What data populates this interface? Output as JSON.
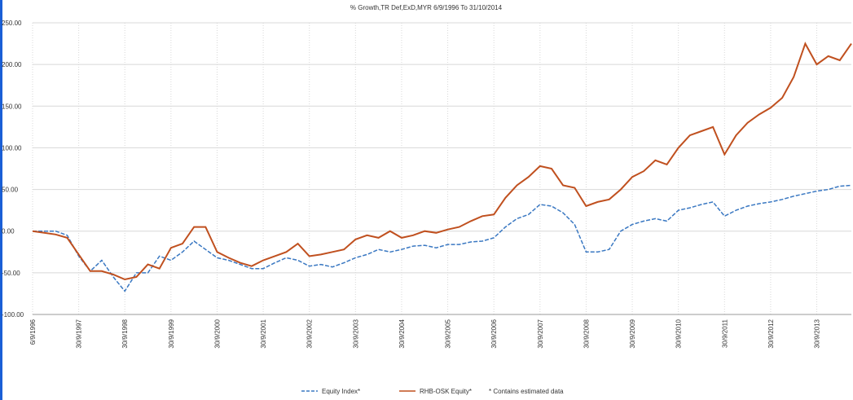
{
  "chart_data": {
    "type": "line",
    "title": "% Growth,TR Def,ExD,MYR 6/9/1996 To 31/10/2014",
    "categories": [
      "6/9/1996",
      null,
      null,
      null,
      "30/9/1997",
      null,
      null,
      null,
      "30/9/1998",
      null,
      null,
      null,
      "30/9/1999",
      null,
      null,
      null,
      "30/9/2000",
      null,
      null,
      null,
      "30/9/2001",
      null,
      null,
      null,
      "30/9/2002",
      null,
      null,
      null,
      "30/9/2003",
      null,
      null,
      null,
      "30/9/2004",
      null,
      null,
      null,
      "30/9/2005",
      null,
      null,
      null,
      "30/9/2006",
      null,
      null,
      null,
      "30/9/2007",
      null,
      null,
      null,
      "30/9/2008",
      null,
      null,
      null,
      "30/9/2009",
      null,
      null,
      null,
      "30/9/2010",
      null,
      null,
      null,
      "30/9/2011",
      null,
      null,
      null,
      "30/9/2012",
      null,
      null,
      null,
      "30/9/2013",
      null,
      null,
      null
    ],
    "series": [
      {
        "name": "Equity Index*",
        "color": "#3a78c2",
        "dash": true,
        "values": [
          0,
          0,
          0,
          -5,
          -30,
          -48,
          -35,
          -55,
          -72,
          -50,
          -50,
          -30,
          -35,
          -25,
          -12,
          -22,
          -32,
          -35,
          -40,
          -45,
          -45,
          -38,
          -32,
          -35,
          -42,
          -40,
          -43,
          -38,
          -32,
          -28,
          -22,
          -25,
          -22,
          -18,
          -17,
          -20,
          -16,
          -16,
          -13,
          -12,
          -8,
          5,
          15,
          20,
          32,
          30,
          22,
          8,
          -25,
          -25,
          -22,
          0,
          8,
          12,
          15,
          12,
          25,
          28,
          32,
          35,
          18,
          25,
          30,
          33,
          35,
          38,
          42,
          45,
          48,
          50,
          54,
          55
        ]
      },
      {
        "name": "RHB-OSK Equity*",
        "color": "#c0501f",
        "dash": false,
        "values": [
          0,
          -2,
          -4,
          -8,
          -28,
          -48,
          -48,
          -52,
          -58,
          -55,
          -40,
          -45,
          -20,
          -15,
          5,
          5,
          -25,
          -32,
          -38,
          -42,
          -35,
          -30,
          -25,
          -15,
          -30,
          -28,
          -25,
          -22,
          -10,
          -5,
          -8,
          0,
          -8,
          -5,
          0,
          -2,
          2,
          5,
          12,
          18,
          20,
          40,
          55,
          65,
          78,
          75,
          55,
          52,
          30,
          35,
          38,
          50,
          65,
          72,
          85,
          80,
          100,
          115,
          120,
          125,
          92,
          115,
          130,
          140,
          148,
          160,
          185,
          225,
          200,
          210,
          205,
          225
        ]
      }
    ],
    "note": "* Contains estimated data",
    "ylim": [
      -100,
      250
    ],
    "yticks": [
      {
        "value": -100,
        "label": "-100.00"
      },
      {
        "value": -50,
        "label": "-50.00"
      },
      {
        "value": 0,
        "label": "0.00"
      },
      {
        "value": 50,
        "label": "50.00"
      },
      {
        "value": 100,
        "label": "100.00"
      },
      {
        "value": 150,
        "label": "150.00"
      },
      {
        "value": 200,
        "label": "200.00"
      },
      {
        "value": 250,
        "label": "250.00"
      }
    ],
    "grid": true
  }
}
